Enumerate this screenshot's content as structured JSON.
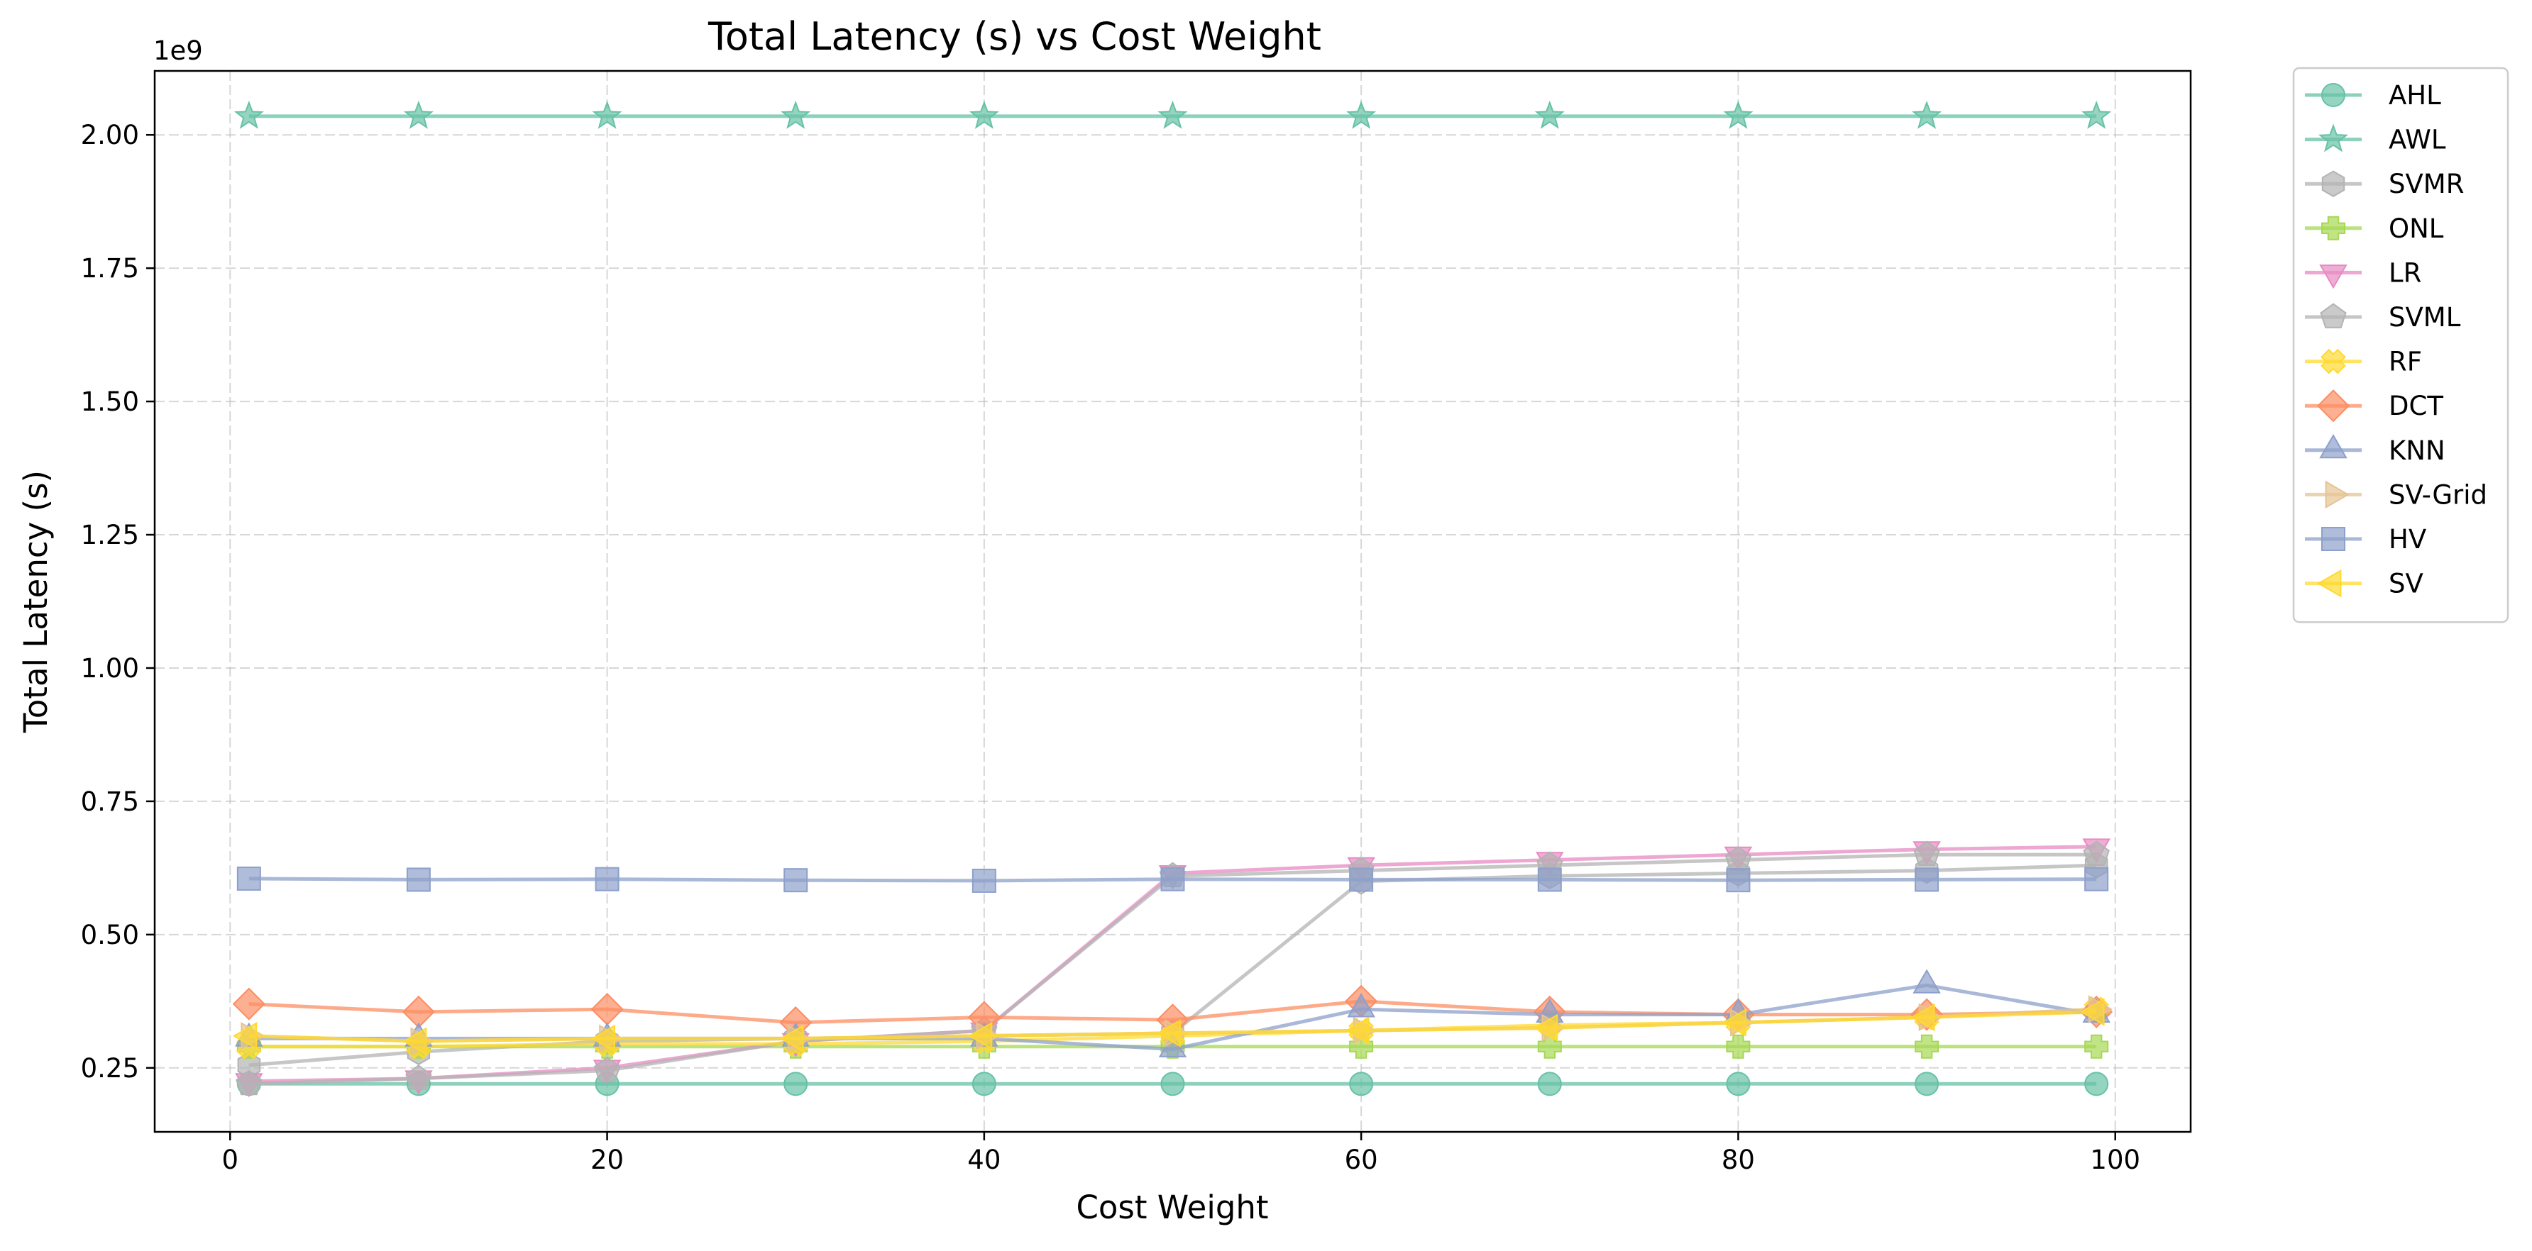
{
  "chart_data": {
    "type": "line",
    "title": "Total Latency (s) vs Cost Weight",
    "xlabel": "Cost Weight",
    "ylabel": "Total Latency (s)",
    "y_offset_text": "1e9",
    "xlim": [
      -4,
      104
    ],
    "ylim": [
      0.13,
      2.12
    ],
    "x_ticks": [
      0,
      20,
      40,
      60,
      80,
      100
    ],
    "x_tick_labels": [
      "0",
      "20",
      "40",
      "60",
      "80",
      "100"
    ],
    "y_ticks": [
      0.25,
      0.5,
      0.75,
      1.0,
      1.25,
      1.5,
      1.75,
      2.0
    ],
    "y_tick_labels": [
      "0.25",
      "0.50",
      "0.75",
      "1.00",
      "1.25",
      "1.50",
      "1.75",
      "2.00"
    ],
    "grid": true,
    "legend_position": "outside right, top",
    "x": [
      1,
      10,
      20,
      30,
      40,
      50,
      60,
      70,
      80,
      90,
      99
    ],
    "series": [
      {
        "name": "AHL",
        "marker": "circle",
        "color": "#66c2a5",
        "values": [
          0.22,
          0.22,
          0.22,
          0.22,
          0.22,
          0.22,
          0.22,
          0.22,
          0.22,
          0.22,
          0.22
        ]
      },
      {
        "name": "AWL",
        "marker": "star",
        "color": "#66c2a5",
        "values": [
          2.035,
          2.035,
          2.035,
          2.035,
          2.035,
          2.035,
          2.035,
          2.035,
          2.035,
          2.035,
          2.035
        ]
      },
      {
        "name": "SVMR",
        "marker": "hexagon",
        "color": "#b3b3b3",
        "values": [
          0.255,
          0.28,
          0.3,
          0.305,
          0.31,
          0.315,
          0.6,
          0.61,
          0.615,
          0.62,
          0.63
        ]
      },
      {
        "name": "ONL",
        "marker": "plus",
        "color": "#a6d854",
        "values": [
          0.29,
          0.29,
          0.29,
          0.29,
          0.29,
          0.29,
          0.29,
          0.29,
          0.29,
          0.29,
          0.29
        ]
      },
      {
        "name": "LR",
        "marker": "triangle-down",
        "color": "#e78ac3",
        "values": [
          0.225,
          0.23,
          0.25,
          0.3,
          0.32,
          0.615,
          0.63,
          0.64,
          0.65,
          0.66,
          0.665
        ]
      },
      {
        "name": "SVML",
        "marker": "pentagon",
        "color": "#b3b3b3",
        "values": [
          0.22,
          0.23,
          0.245,
          0.3,
          0.32,
          0.61,
          0.62,
          0.63,
          0.64,
          0.65,
          0.65
        ]
      },
      {
        "name": "RF",
        "marker": "x-filled",
        "color": "#ffd92f",
        "values": [
          0.29,
          0.29,
          0.295,
          0.295,
          0.3,
          0.31,
          0.32,
          0.33,
          0.335,
          0.345,
          0.36
        ]
      },
      {
        "name": "DCT",
        "marker": "diamond",
        "color": "#fc8d62",
        "values": [
          0.37,
          0.355,
          0.36,
          0.335,
          0.345,
          0.34,
          0.375,
          0.355,
          0.35,
          0.35,
          0.355
        ]
      },
      {
        "name": "KNN",
        "marker": "triangle-up",
        "color": "#8da0cb",
        "values": [
          0.305,
          0.305,
          0.305,
          0.305,
          0.305,
          0.285,
          0.36,
          0.35,
          0.35,
          0.405,
          0.35
        ]
      },
      {
        "name": "SV-Grid",
        "marker": "triangle-right",
        "color": "#e5c494",
        "values": [
          0.31,
          0.3,
          0.305,
          0.305,
          0.31,
          0.315,
          0.32,
          0.325,
          0.335,
          0.345,
          0.36
        ]
      },
      {
        "name": "HV",
        "marker": "square",
        "color": "#8da0cb",
        "values": [
          0.605,
          0.603,
          0.604,
          0.602,
          0.601,
          0.604,
          0.603,
          0.603,
          0.602,
          0.603,
          0.604
        ]
      },
      {
        "name": "SV",
        "marker": "triangle-left",
        "color": "#ffd92f",
        "values": [
          0.31,
          0.3,
          0.305,
          0.305,
          0.31,
          0.315,
          0.32,
          0.325,
          0.335,
          0.345,
          0.355
        ]
      }
    ]
  }
}
